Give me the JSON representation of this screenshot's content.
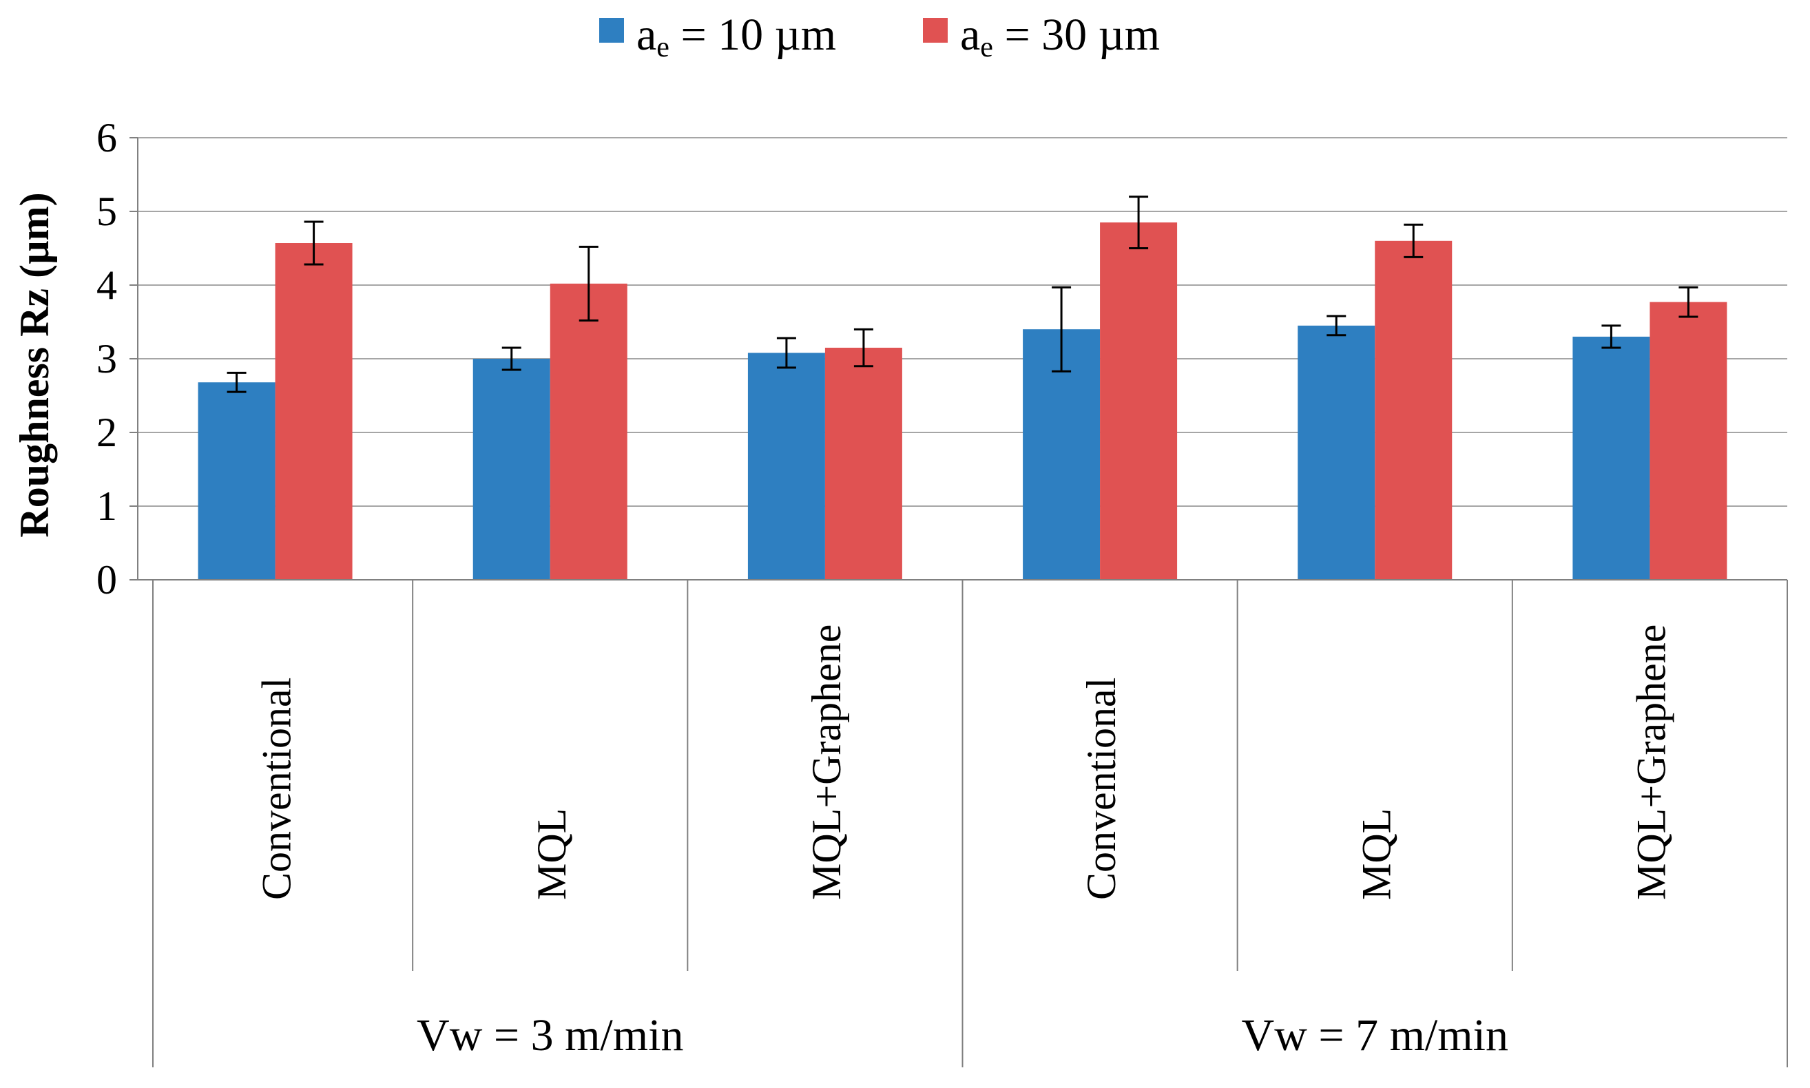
{
  "chart_data": {
    "type": "bar",
    "ylabel": "Roughness Rz (µm)",
    "xlabel": "",
    "ylim": [
      0,
      6
    ],
    "yticks": [
      "0",
      "1",
      "2",
      "3",
      "4",
      "5",
      "6"
    ],
    "grid": true,
    "legend_position": "top-center",
    "groups": [
      {
        "label": "Vw = 3 m/min",
        "categories": [
          "Conventional",
          "MQL",
          "MQL+Graphene"
        ]
      },
      {
        "label": "Vw = 7 m/min",
        "categories": [
          "Conventional",
          "MQL",
          "MQL+Graphene"
        ]
      }
    ],
    "series": [
      {
        "legend_main": "a",
        "legend_sub": "e",
        "legend_rest": " = 10 µm",
        "color": "#2e7fc1",
        "values": [
          2.68,
          3.0,
          3.08,
          3.4,
          3.45,
          3.3
        ],
        "errors": [
          0.13,
          0.15,
          0.2,
          0.57,
          0.13,
          0.15
        ]
      },
      {
        "legend_main": "a",
        "legend_sub": "e",
        "legend_rest": " = 30 µm",
        "color": "#e05252",
        "values": [
          4.57,
          4.02,
          3.15,
          4.85,
          4.6,
          3.77
        ],
        "errors": [
          0.29,
          0.5,
          0.25,
          0.35,
          0.22,
          0.2
        ]
      }
    ]
  }
}
